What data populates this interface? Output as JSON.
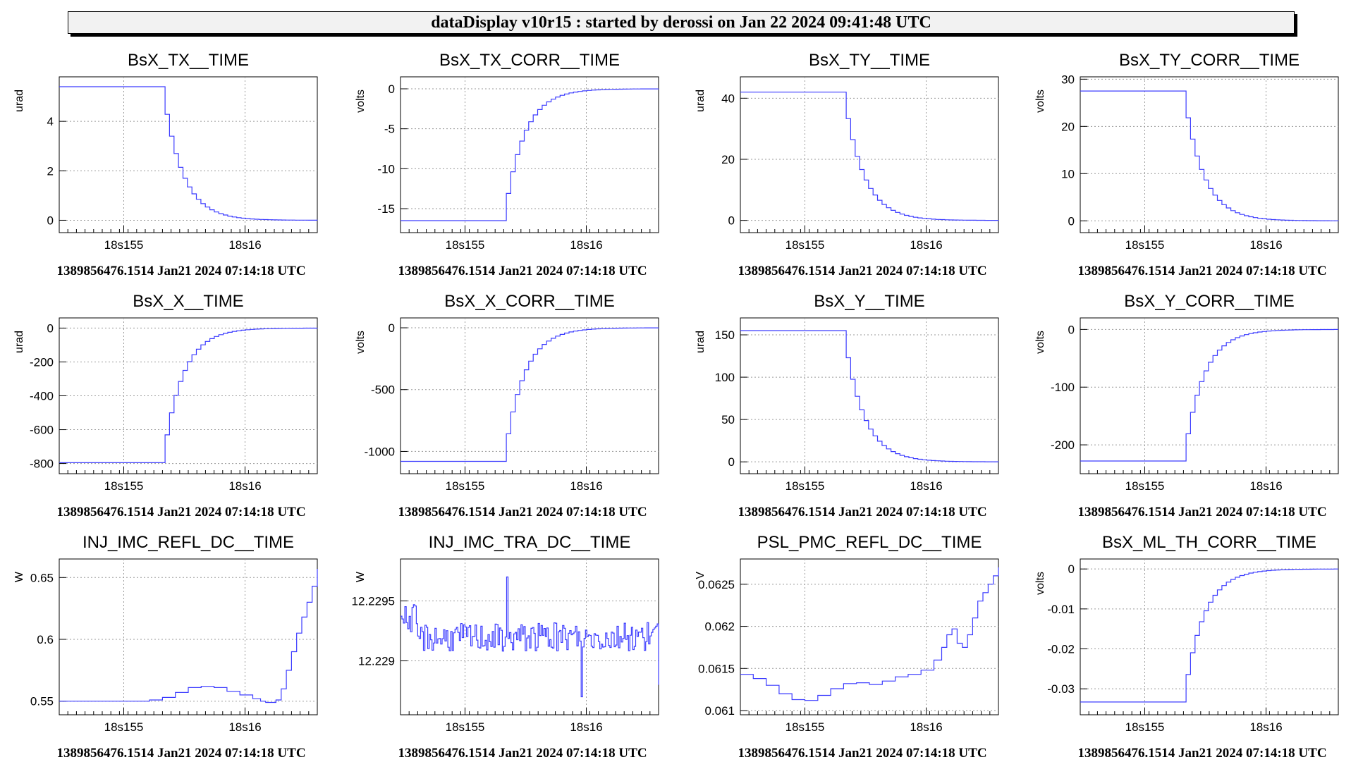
{
  "banner": {
    "text": "dataDisplay v10r15 : started by derossi on Jan 22 2024 09:41:48 UTC"
  },
  "colors": {
    "trace": "#3b3bff",
    "grid": "#9a9a9a",
    "axis": "#000000"
  },
  "chart_data": [
    {
      "type": "line",
      "title": "BsX_TX__TIME",
      "ylabel": "urad",
      "ylim": [
        -0.5,
        5.8
      ],
      "yticks": [
        {
          "v": 0,
          "l": "0"
        },
        {
          "v": 2,
          "l": "2"
        },
        {
          "v": 4,
          "l": "4"
        }
      ],
      "xticks": [
        "18s155",
        "18s16"
      ],
      "grid": true,
      "footer": "1389856476.1514 Jan21 2024 07:14:18 UTC",
      "shape": "decay",
      "start": 5.4,
      "end": 0
    },
    {
      "type": "line",
      "title": "BsX_TX_CORR__TIME",
      "ylabel": "volts",
      "ylim": [
        -18,
        1.5
      ],
      "yticks": [
        {
          "v": 0,
          "l": "0"
        },
        {
          "v": -5,
          "l": "-5"
        },
        {
          "v": -10,
          "l": "-10"
        },
        {
          "v": -15,
          "l": "-15"
        }
      ],
      "xticks": [
        "18s155",
        "18s16"
      ],
      "grid": true,
      "footer": "1389856476.1514 Jan21 2024 07:14:18 UTC",
      "shape": "rise",
      "start": -16.5,
      "end": 0
    },
    {
      "type": "line",
      "title": "BsX_TY__TIME",
      "ylabel": "urad",
      "ylim": [
        -4,
        47
      ],
      "yticks": [
        {
          "v": 0,
          "l": "0"
        },
        {
          "v": 20,
          "l": "20"
        },
        {
          "v": 40,
          "l": "40"
        }
      ],
      "xticks": [
        "18s155",
        "18s16"
      ],
      "grid": true,
      "footer": "1389856476.1514 Jan21 2024 07:14:18 UTC",
      "shape": "decay",
      "start": 42,
      "end": 0
    },
    {
      "type": "line",
      "title": "BsX_TY_CORR__TIME",
      "ylabel": "volts",
      "ylim": [
        -2.5,
        30.5
      ],
      "yticks": [
        {
          "v": 0,
          "l": "0"
        },
        {
          "v": 10,
          "l": "10"
        },
        {
          "v": 20,
          "l": "20"
        },
        {
          "v": 30,
          "l": "30"
        }
      ],
      "xticks": [
        "18s155",
        "18s16"
      ],
      "grid": true,
      "footer": "1389856476.1514 Jan21 2024 07:14:18 UTC",
      "shape": "decay",
      "start": 27.5,
      "end": 0
    },
    {
      "type": "line",
      "title": "BsX_X__TIME",
      "ylabel": "urad",
      "ylim": [
        -860,
        60
      ],
      "yticks": [
        {
          "v": 0,
          "l": "0"
        },
        {
          "v": -200,
          "l": "-200"
        },
        {
          "v": -400,
          "l": "-400"
        },
        {
          "v": -600,
          "l": "-600"
        },
        {
          "v": -800,
          "l": "-800"
        }
      ],
      "xticks": [
        "18s155",
        "18s16"
      ],
      "grid": true,
      "footer": "1389856476.1514 Jan21 2024 07:14:18 UTC",
      "shape": "rise",
      "start": -795,
      "end": 0
    },
    {
      "type": "line",
      "title": "BsX_X_CORR__TIME",
      "ylabel": "volts",
      "ylim": [
        -1180,
        80
      ],
      "yticks": [
        {
          "v": 0,
          "l": "0"
        },
        {
          "v": -500,
          "l": "-500"
        },
        {
          "v": -1000,
          "l": "-1000"
        }
      ],
      "xticks": [
        "18s155",
        "18s16"
      ],
      "grid": true,
      "footer": "1389856476.1514 Jan21 2024 07:14:18 UTC",
      "shape": "rise",
      "start": -1080,
      "end": 0
    },
    {
      "type": "line",
      "title": "BsX_Y__TIME",
      "ylabel": "urad",
      "ylim": [
        -14,
        170
      ],
      "yticks": [
        {
          "v": 0,
          "l": "0"
        },
        {
          "v": 50,
          "l": "50"
        },
        {
          "v": 100,
          "l": "100"
        },
        {
          "v": 150,
          "l": "150"
        }
      ],
      "xticks": [
        "18s155",
        "18s16"
      ],
      "grid": true,
      "footer": "1389856476.1514 Jan21 2024 07:14:18 UTC",
      "shape": "decay",
      "start": 155,
      "end": 0
    },
    {
      "type": "line",
      "title": "BsX_Y_CORR__TIME",
      "ylabel": "volts",
      "ylim": [
        -250,
        20
      ],
      "yticks": [
        {
          "v": 0,
          "l": "0"
        },
        {
          "v": -100,
          "l": "-100"
        },
        {
          "v": -200,
          "l": "-200"
        }
      ],
      "xticks": [
        "18s155",
        "18s16"
      ],
      "grid": true,
      "footer": "1389856476.1514 Jan21 2024 07:14:18 UTC",
      "shape": "rise",
      "start": -228,
      "end": 0
    },
    {
      "type": "line",
      "title": "INJ_IMC_REFL_DC__TIME",
      "ylabel": "W",
      "ylim": [
        0.539,
        0.665
      ],
      "yticks": [
        {
          "v": 0.55,
          "l": "0.55"
        },
        {
          "v": 0.6,
          "l": "0.6"
        },
        {
          "v": 0.65,
          "l": "0.65"
        }
      ],
      "xticks": [
        "18s155",
        "18s16"
      ],
      "grid": true,
      "footer": "1389856476.1514 Jan21 2024 07:14:18 UTC",
      "shape": "points",
      "x": [
        0,
        0.1,
        0.2,
        0.3,
        0.35,
        0.4,
        0.45,
        0.5,
        0.55,
        0.6,
        0.65,
        0.7,
        0.75,
        0.78,
        0.8,
        0.82,
        0.84,
        0.86,
        0.88,
        0.9,
        0.92,
        0.94,
        0.96,
        0.98,
        1.0
      ],
      "y": [
        0.55,
        0.55,
        0.55,
        0.55,
        0.551,
        0.553,
        0.557,
        0.561,
        0.562,
        0.561,
        0.558,
        0.555,
        0.552,
        0.55,
        0.549,
        0.549,
        0.551,
        0.56,
        0.575,
        0.59,
        0.605,
        0.618,
        0.63,
        0.643,
        0.657
      ]
    },
    {
      "type": "line",
      "title": "INJ_IMC_TRA_DC__TIME",
      "ylabel": "W",
      "ylim": [
        12.22855,
        12.22985
      ],
      "yticks": [
        {
          "v": 12.229,
          "l": "12.229"
        },
        {
          "v": 12.2295,
          "l": "12.2295"
        }
      ],
      "xticks": [
        "18s155",
        "18s16"
      ],
      "grid": true,
      "footer": "1389856476.1514 Jan21 2024 07:14:18 UTC",
      "shape": "noise",
      "base": 12.2292,
      "amp": 0.00012,
      "spikes": [
        {
          "x": 0.41,
          "y": 12.2297
        },
        {
          "x": 0.7,
          "y": 12.2287
        },
        {
          "x": 1.0,
          "y": 12.2288
        }
      ]
    },
    {
      "type": "line",
      "title": "PSL_PMC_REFL_DC__TIME",
      "ylabel": "V",
      "ylim": [
        0.06095,
        0.0628
      ],
      "yticks": [
        {
          "v": 0.061,
          "l": "0.061"
        },
        {
          "v": 0.0615,
          "l": "0.0615"
        },
        {
          "v": 0.062,
          "l": "0.062"
        },
        {
          "v": 0.0625,
          "l": "0.0625"
        }
      ],
      "xticks": [
        "18s155",
        "18s16"
      ],
      "grid": true,
      "footer": "1389856476.1514 Jan21 2024 07:14:18 UTC",
      "shape": "points",
      "x": [
        0,
        0.05,
        0.1,
        0.15,
        0.2,
        0.25,
        0.3,
        0.35,
        0.4,
        0.45,
        0.5,
        0.55,
        0.6,
        0.65,
        0.7,
        0.75,
        0.78,
        0.8,
        0.82,
        0.84,
        0.86,
        0.88,
        0.9,
        0.92,
        0.94,
        0.96,
        0.98,
        1.0
      ],
      "y": [
        0.06143,
        0.06138,
        0.0613,
        0.0612,
        0.06113,
        0.06112,
        0.06118,
        0.06126,
        0.06132,
        0.06133,
        0.06131,
        0.06135,
        0.0614,
        0.06143,
        0.06148,
        0.0616,
        0.06175,
        0.0619,
        0.06197,
        0.0618,
        0.06175,
        0.0619,
        0.0621,
        0.0623,
        0.0624,
        0.0625,
        0.0626,
        0.0627
      ]
    },
    {
      "type": "line",
      "title": "BsX_ML_TH_CORR__TIME",
      "ylabel": "volts",
      "ylim": [
        -0.0365,
        0.0025
      ],
      "yticks": [
        {
          "v": 0,
          "l": "0"
        },
        {
          "v": -0.01,
          "l": "-0.01"
        },
        {
          "v": -0.02,
          "l": "-0.02"
        },
        {
          "v": -0.03,
          "l": "-0.03"
        }
      ],
      "xticks": [
        "18s155",
        "18s16"
      ],
      "grid": true,
      "footer": "1389856476.1514 Jan21 2024 07:14:18 UTC",
      "shape": "rise",
      "start": -0.0333,
      "end": 0
    }
  ]
}
